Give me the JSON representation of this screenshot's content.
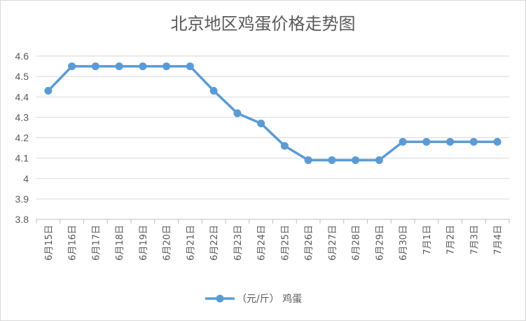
{
  "chart_data": {
    "type": "line",
    "title": "北京地区鸡蛋价格走势图",
    "categories": [
      "6月15日",
      "6月16日",
      "6月17日",
      "6月18日",
      "6月19日",
      "6月20日",
      "6月21日",
      "6月22日",
      "6月23日",
      "6月24日",
      "6月25日",
      "6月26日",
      "6月27日",
      "6月28日",
      "6月29日",
      "6月30日",
      "7月1日",
      "7月2日",
      "7月3日",
      "7月4日"
    ],
    "series": [
      {
        "name": "（元/斤）  鸡蛋",
        "color": "#5b9bd5",
        "values": [
          4.43,
          4.55,
          4.55,
          4.55,
          4.55,
          4.55,
          4.55,
          4.43,
          4.32,
          4.27,
          4.16,
          4.09,
          4.09,
          4.09,
          4.09,
          4.18,
          4.18,
          4.18,
          4.18,
          4.18
        ]
      }
    ],
    "yticks": [
      "3.8",
      "3.9",
      "4",
      "4.1",
      "4.2",
      "4.3",
      "4.4",
      "4.5",
      "4.6"
    ],
    "ylim": [
      3.8,
      4.6
    ],
    "grid": true,
    "legend": "bottom"
  }
}
